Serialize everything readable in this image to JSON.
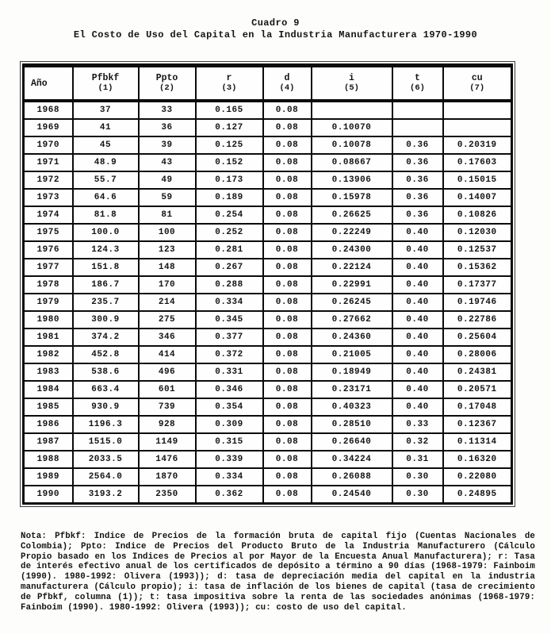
{
  "title": {
    "line1": "Cuadro 9",
    "line2": "El Costo de Uso del Capital en la Industria Manufacturera 1970-1990"
  },
  "table": {
    "columns": [
      {
        "key": "ano",
        "label": "Año",
        "sub": ""
      },
      {
        "key": "pfbkf",
        "label": "Pfbkf",
        "sub": "(1)"
      },
      {
        "key": "ppto",
        "label": "Ppto",
        "sub": "(2)"
      },
      {
        "key": "r",
        "label": "r",
        "sub": "(3)"
      },
      {
        "key": "d",
        "label": "d",
        "sub": "(4)"
      },
      {
        "key": "i",
        "label": "i",
        "sub": "(5)"
      },
      {
        "key": "t",
        "label": "t",
        "sub": "(6)"
      },
      {
        "key": "cu",
        "label": "cu",
        "sub": "(7)"
      }
    ],
    "rows": [
      [
        "1968",
        "37",
        "33",
        "0.165",
        "0.08",
        "",
        "",
        ""
      ],
      [
        "1969",
        "41",
        "36",
        "0.127",
        "0.08",
        "0.10070",
        "",
        ""
      ],
      [
        "1970",
        "45",
        "39",
        "0.125",
        "0.08",
        "0.10078",
        "0.36",
        "0.20319"
      ],
      [
        "1971",
        "48.9",
        "43",
        "0.152",
        "0.08",
        "0.08667",
        "0.36",
        "0.17603"
      ],
      [
        "1972",
        "55.7",
        "49",
        "0.173",
        "0.08",
        "0.13906",
        "0.36",
        "0.15015"
      ],
      [
        "1973",
        "64.6",
        "59",
        "0.189",
        "0.08",
        "0.15978",
        "0.36",
        "0.14007"
      ],
      [
        "1974",
        "81.8",
        "81",
        "0.254",
        "0.08",
        "0.26625",
        "0.36",
        "0.10826"
      ],
      [
        "1975",
        "100.0",
        "100",
        "0.252",
        "0.08",
        "0.22249",
        "0.40",
        "0.12030"
      ],
      [
        "1976",
        "124.3",
        "123",
        "0.281",
        "0.08",
        "0.24300",
        "0.40",
        "0.12537"
      ],
      [
        "1977",
        "151.8",
        "148",
        "0.267",
        "0.08",
        "0.22124",
        "0.40",
        "0.15362"
      ],
      [
        "1978",
        "186.7",
        "170",
        "0.288",
        "0.08",
        "0.22991",
        "0.40",
        "0.17377"
      ],
      [
        "1979",
        "235.7",
        "214",
        "0.334",
        "0.08",
        "0.26245",
        "0.40",
        "0.19746"
      ],
      [
        "1980",
        "300.9",
        "275",
        "0.345",
        "0.08",
        "0.27662",
        "0.40",
        "0.22786"
      ],
      [
        "1981",
        "374.2",
        "346",
        "0.377",
        "0.08",
        "0.24360",
        "0.40",
        "0.25604"
      ],
      [
        "1982",
        "452.8",
        "414",
        "0.372",
        "0.08",
        "0.21005",
        "0.40",
        "0.28006"
      ],
      [
        "1983",
        "538.6",
        "496",
        "0.331",
        "0.08",
        "0.18949",
        "0.40",
        "0.24381"
      ],
      [
        "1984",
        "663.4",
        "601",
        "0.346",
        "0.08",
        "0.23171",
        "0.40",
        "0.20571"
      ],
      [
        "1985",
        "930.9",
        "739",
        "0.354",
        "0.08",
        "0.40323",
        "0.40",
        "0.17048"
      ],
      [
        "1986",
        "1196.3",
        "928",
        "0.309",
        "0.08",
        "0.28510",
        "0.33",
        "0.12367"
      ],
      [
        "1987",
        "1515.0",
        "1149",
        "0.315",
        "0.08",
        "0.26640",
        "0.32",
        "0.11314"
      ],
      [
        "1988",
        "2033.5",
        "1476",
        "0.339",
        "0.08",
        "0.34224",
        "0.31",
        "0.16320"
      ],
      [
        "1989",
        "2564.0",
        "1870",
        "0.334",
        "0.08",
        "0.26088",
        "0.30",
        "0.22080"
      ],
      [
        "1990",
        "3193.2",
        "2350",
        "0.362",
        "0.08",
        "0.24540",
        "0.30",
        "0.24895"
      ]
    ]
  },
  "note": "Nota: Pfbkf: Indice de Precios de la formación bruta de capital fijo (Cuentas Nacionales de Colombia); Ppto: Indice de Precios del Producto Bruto de la Industria Manufacturero (Cálculo Propio basado en los Indices de Precios al por Mayor de la Encuesta Anual Manufacturera); r: Tasa de interés efectivo anual de los certificados de depósito a término a 90 días (1968-1979: Fainboim (1990). 1980-1992: Olivera (1993)); d: tasa de depreciación media del capital en la industria manufacturera (Cálculo propio); i: tasa de inflación de los bienes de capital (tasa de crecimiento de Pfbkf, columna (1)); t: tasa impositiva sobre la renta de las sociedades anónimas (1968-1979: Fainboim (1990). 1980-1992: Olivera (1993)); cu: costo de uso del capital."
}
